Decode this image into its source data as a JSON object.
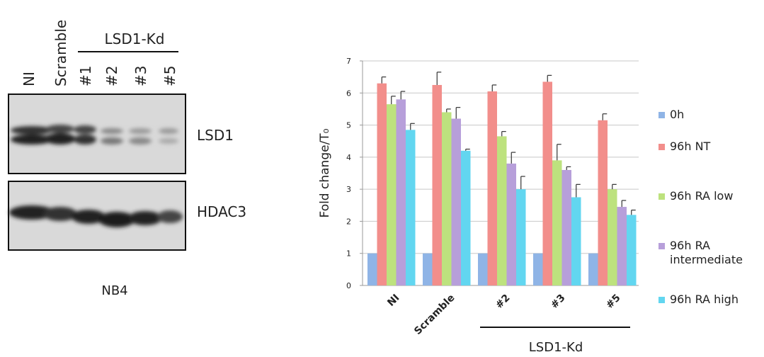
{
  "blot": {
    "lanes": [
      "NI",
      "Scramble",
      "#1",
      "#2",
      "#3",
      "#5"
    ],
    "group_label": "LSD1-Kd",
    "rows": [
      "LSD1",
      "HDAC3"
    ],
    "cell_line": "NB4"
  },
  "chart_data": {
    "type": "bar",
    "y_label": "Fold change/T₀",
    "categories": [
      "NI",
      "Scramble",
      "#2",
      "#3",
      "#5"
    ],
    "group_label": "LSD1-Kd",
    "ylim": [
      0,
      7
    ],
    "yticks": [
      0,
      1,
      2,
      3,
      4,
      5,
      6,
      7
    ],
    "grid": true,
    "series": [
      {
        "name": "0h",
        "color": "#8fb4e6",
        "values": [
          1,
          1,
          1,
          1,
          1
        ]
      },
      {
        "name": "96h NT",
        "color": "#f28e8b",
        "values": [
          6.3,
          6.25,
          6.05,
          6.35,
          5.15
        ],
        "errors": [
          0.2,
          0.4,
          0.2,
          0.2,
          0.2
        ]
      },
      {
        "name": "96h RA low",
        "color": "#bde27e",
        "values": [
          5.65,
          5.4,
          4.65,
          3.9,
          3.0
        ],
        "errors": [
          0.25,
          0.1,
          0.15,
          0.5,
          0.15
        ]
      },
      {
        "name": "96h RA intermediate",
        "color": "#b79fda",
        "values": [
          5.8,
          5.2,
          3.8,
          3.6,
          2.45
        ],
        "errors": [
          0.25,
          0.35,
          0.35,
          0.1,
          0.2
        ]
      },
      {
        "name": "96h RA high",
        "color": "#62d6f0",
        "values": [
          4.85,
          4.2,
          3.0,
          2.75,
          2.2
        ],
        "errors": [
          0.2,
          0.05,
          0.4,
          0.4,
          0.15
        ]
      }
    ]
  }
}
